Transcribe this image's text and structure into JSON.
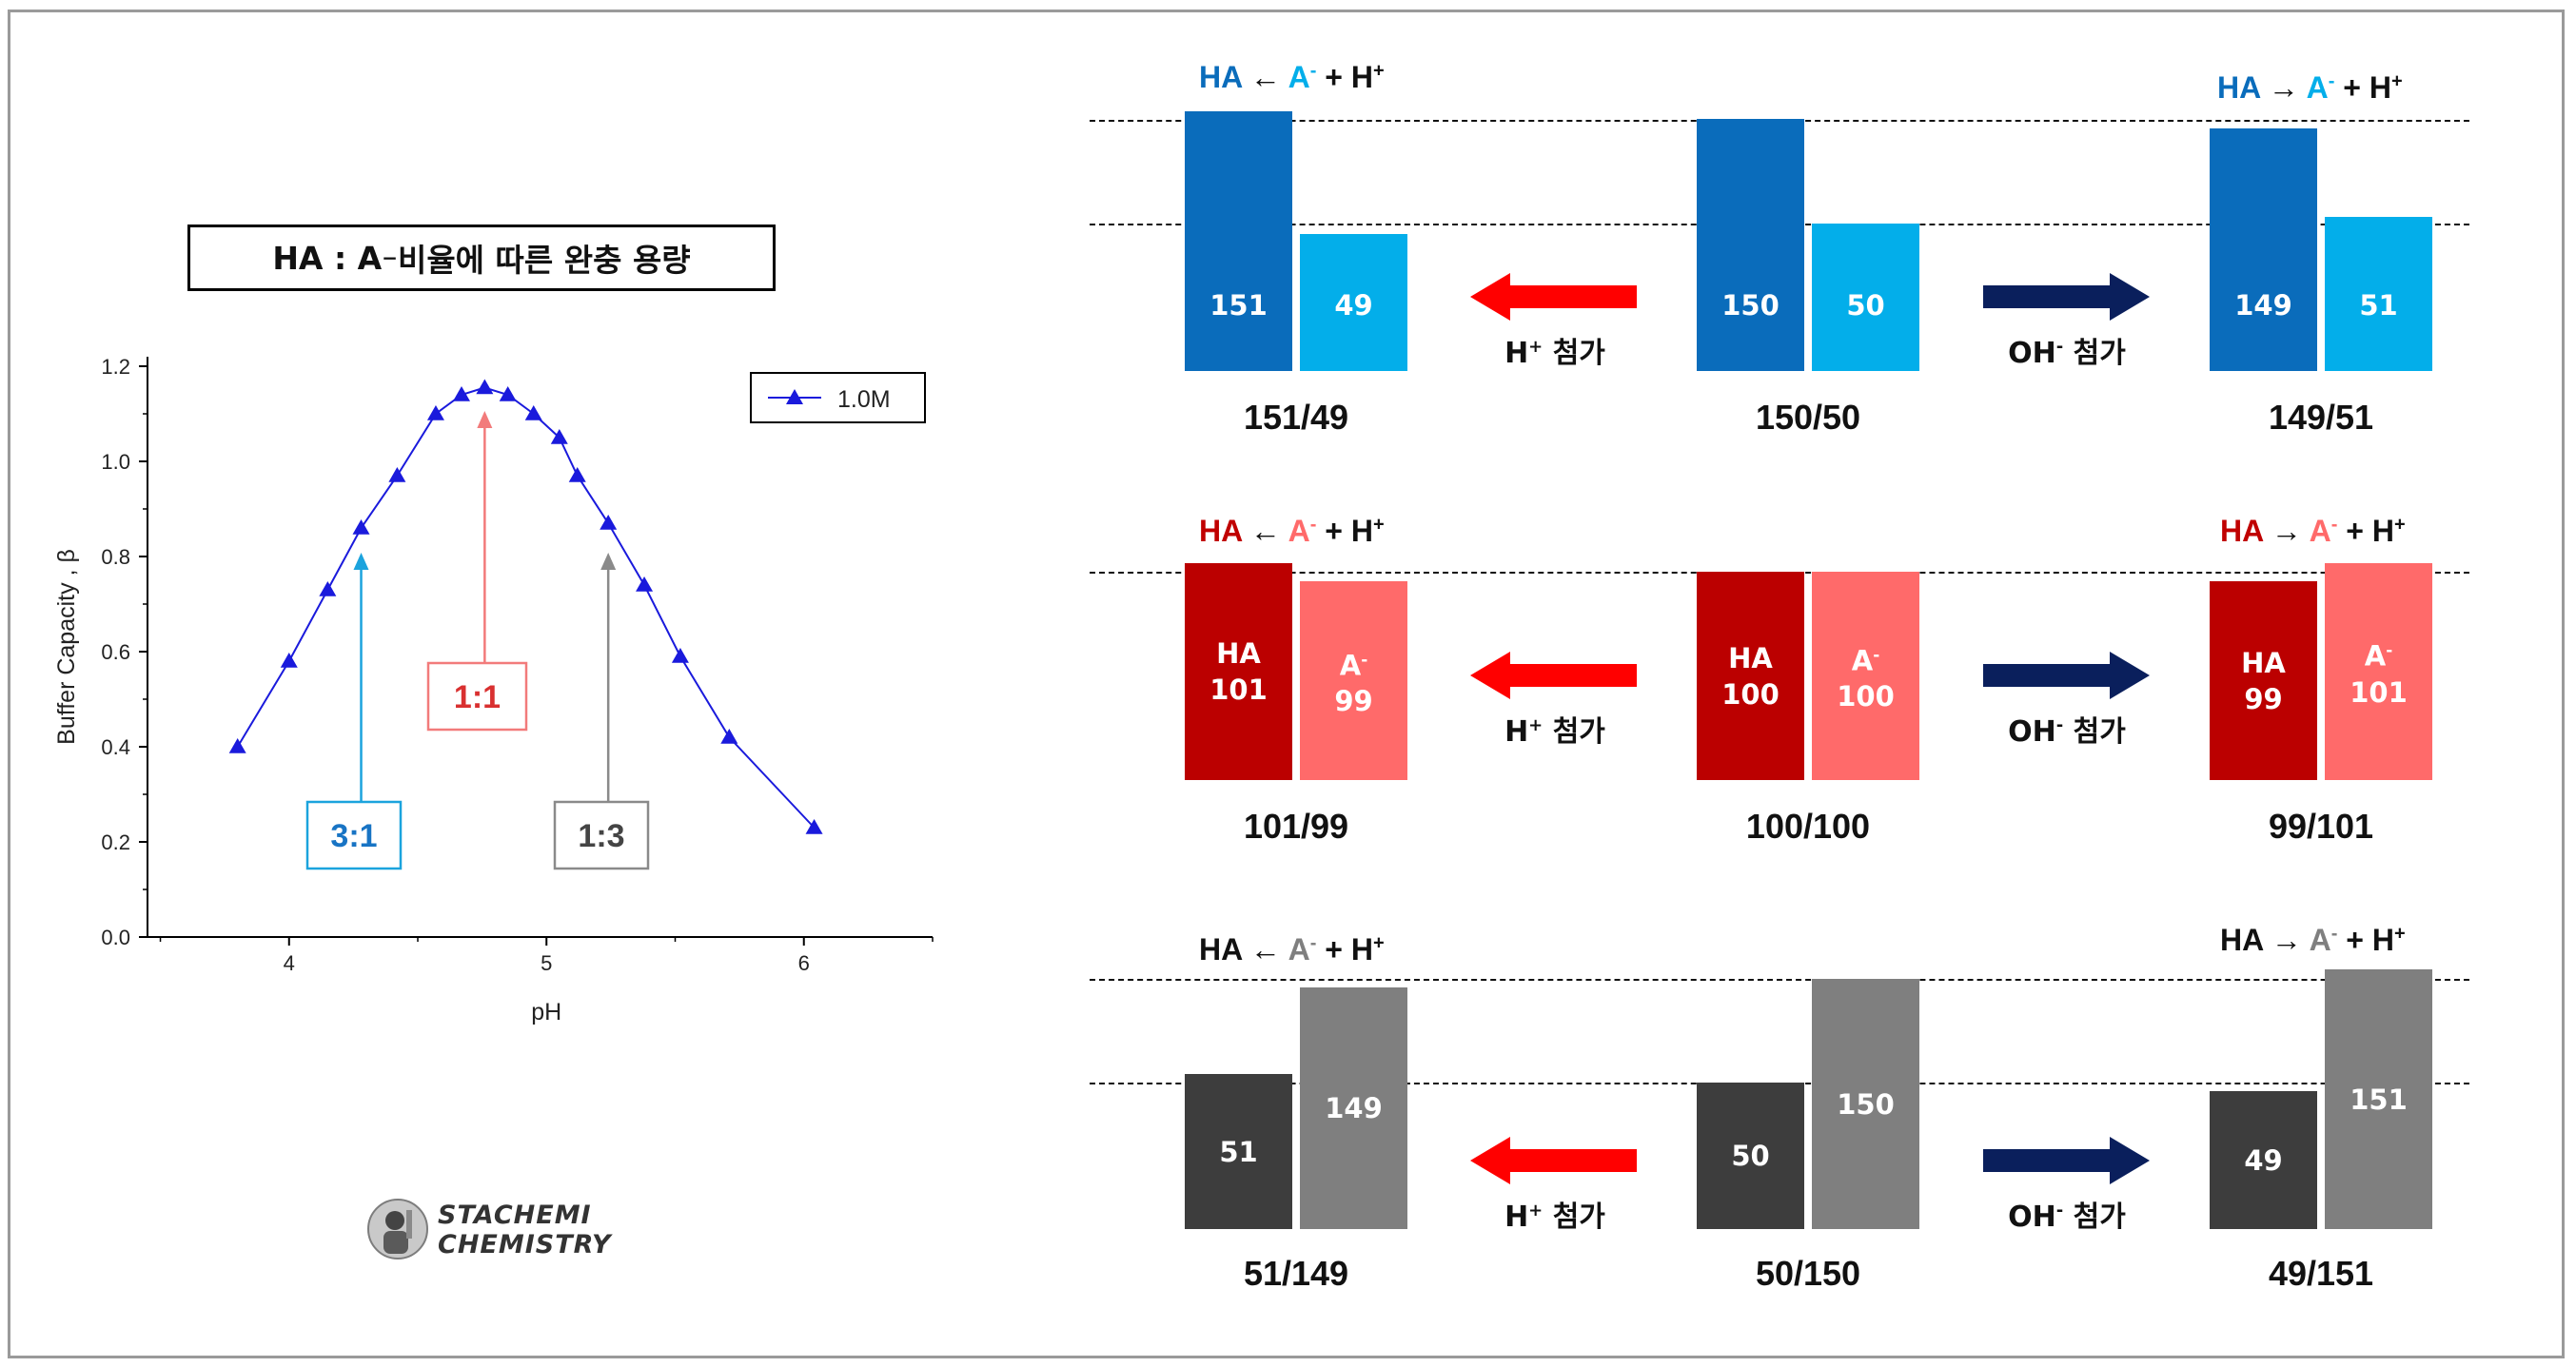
{
  "page_title": {
    "main": "HA : A",
    "sup": "−",
    "rest": " 비율에 따른 완충 용량"
  },
  "chart_data": {
    "type": "line",
    "title": "HA : A⁻ 비율에 따른 완충 용량",
    "xlabel": "pH",
    "ylabel": "Buffer Capacity , β",
    "xlim": [
      3.45,
      6.5
    ],
    "ylim": [
      0,
      1.22
    ],
    "x_ticks": [
      4,
      5,
      6
    ],
    "y_ticks": [
      0.0,
      0.2,
      0.4,
      0.6,
      0.8,
      1.0,
      1.2
    ],
    "grid": false,
    "legend_position": "top-right",
    "series": [
      {
        "name": "1.0M",
        "color": "#1a1adc",
        "marker": "triangle",
        "x": [
          3.8,
          4.0,
          4.15,
          4.28,
          4.42,
          4.57,
          4.67,
          4.76,
          4.85,
          4.95,
          5.05,
          5.12,
          5.24,
          5.38,
          5.52,
          5.71,
          6.04
        ],
        "y": [
          0.4,
          0.58,
          0.73,
          0.86,
          0.97,
          1.1,
          1.14,
          1.155,
          1.14,
          1.1,
          1.05,
          0.97,
          0.87,
          0.74,
          0.59,
          0.42,
          0.23
        ]
      }
    ],
    "annotations": [
      {
        "text": "3:1",
        "x": 4.28,
        "color": "#1ba3dd",
        "text_color": "#1874c4"
      },
      {
        "text": "1:1",
        "x": 4.76,
        "color": "#f27b7b",
        "text_color": "#d93030"
      },
      {
        "text": "1:3",
        "x": 5.24,
        "color": "#8a8a8a",
        "text_color": "#444444"
      }
    ]
  },
  "panels": [
    {
      "id": "blue",
      "dark": "#0a6cbb",
      "light": "#03aeea",
      "label_color": "#0a6cbb",
      "aminus_color": "#03aeea",
      "groups": [
        {
          "ha": "151",
          "a": "49",
          "ha_head": "",
          "a_head": "",
          "ratio": "151/49"
        },
        {
          "ha": "150",
          "a": "50",
          "ha_head": "",
          "a_head": "",
          "ratio": "150/50"
        },
        {
          "ha": "149",
          "a": "51",
          "ha_head": "",
          "a_head": "",
          "ratio": "149/51"
        }
      ],
      "eq_left": {
        "ha": "HA",
        "arrow": " ← ",
        "a": "A",
        "asup": "-",
        "plus": " + H",
        "hsup": "+"
      },
      "eq_right": {
        "ha": "HA",
        "arrow": " → ",
        "a": "A",
        "asup": "-",
        "plus": " + H",
        "hsup": "+"
      },
      "add_left": {
        "text": "H",
        "sup": "+",
        "rest": " 첨가"
      },
      "add_right": {
        "text": "OH",
        "sup": "-",
        "rest": " 첨가"
      }
    },
    {
      "id": "red",
      "dark": "#bb0000",
      "light": "#ff6a6a",
      "label_color": "#c00000",
      "aminus_color": "#ff6a6a",
      "groups": [
        {
          "ha": "101",
          "a": "99",
          "ha_head": "HA",
          "a_head": "A",
          "ratio": "101/99"
        },
        {
          "ha": "100",
          "a": "100",
          "ha_head": "HA",
          "a_head": "A",
          "ratio": "100/100"
        },
        {
          "ha": "99",
          "a": "101",
          "ha_head": "HA",
          "a_head": "A",
          "ratio": "99/101"
        }
      ],
      "a_head_sup": "-",
      "eq_left": {
        "ha": "HA",
        "arrow": " ← ",
        "a": "A",
        "asup": "-",
        "plus": " + H",
        "hsup": "+"
      },
      "eq_right": {
        "ha": "HA",
        "arrow": " → ",
        "a": "A",
        "asup": "-",
        "plus": " + H",
        "hsup": "+"
      },
      "add_left": {
        "text": "H",
        "sup": "+",
        "rest": " 첨가"
      },
      "add_right": {
        "text": "OH",
        "sup": "-",
        "rest": " 첨가"
      }
    },
    {
      "id": "gray",
      "dark": "#3d3d3d",
      "light": "#7f7f7f",
      "label_color": "#111111",
      "aminus_color": "#7f7f7f",
      "groups": [
        {
          "ha": "51",
          "a": "149",
          "ha_head": "",
          "a_head": "",
          "ratio": "51/149"
        },
        {
          "ha": "50",
          "a": "150",
          "ha_head": "",
          "a_head": "",
          "ratio": "50/150"
        },
        {
          "ha": "49",
          "a": "151",
          "ha_head": "",
          "a_head": "",
          "ratio": "49/151"
        }
      ],
      "eq_left": {
        "ha": "HA",
        "arrow": " ← ",
        "a": "A",
        "asup": "-",
        "plus": " + H",
        "hsup": "+"
      },
      "eq_right": {
        "ha": "HA",
        "arrow": " → ",
        "a": "A",
        "asup": "-",
        "plus": " + H",
        "hsup": "+"
      },
      "add_left": {
        "text": "H",
        "sup": "+",
        "rest": " 첨가"
      },
      "add_right": {
        "text": "OH",
        "sup": "-",
        "rest": " 첨가"
      }
    }
  ],
  "logo": {
    "line1": "STACHEMI",
    "line2": "CHEMISTRY"
  },
  "arrow_colors": {
    "h_plus": "#ff0000",
    "oh_minus": "#0a1f5c"
  }
}
